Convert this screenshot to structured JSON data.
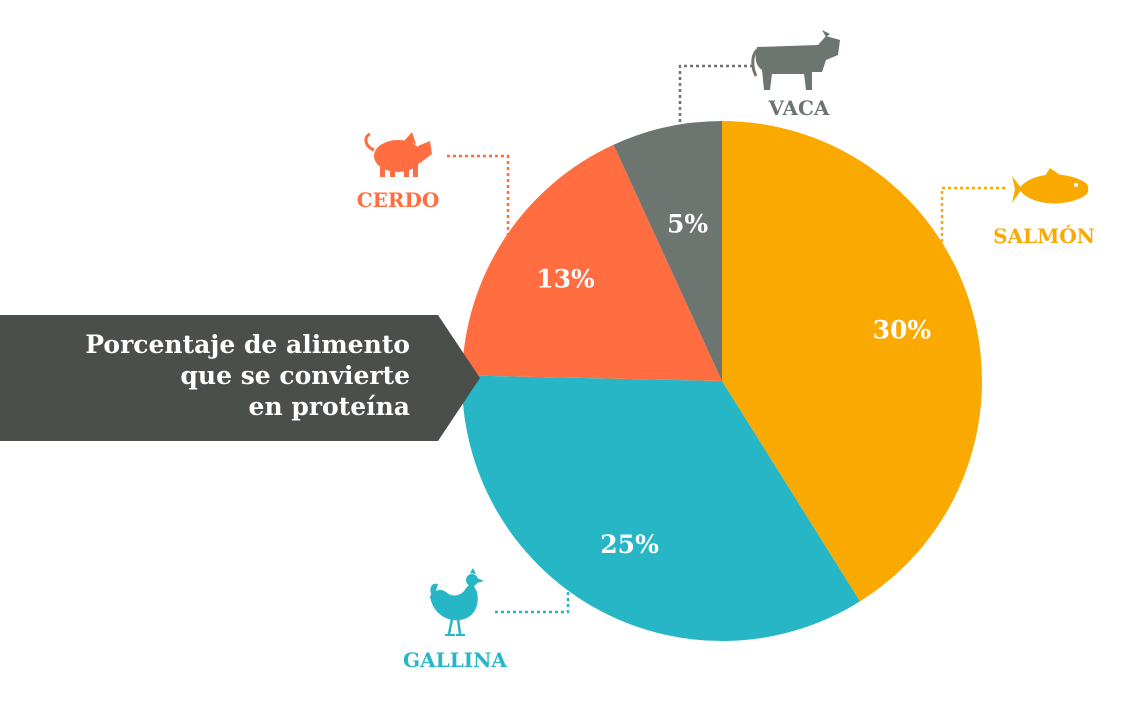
{
  "colors": {
    "salmon": "#F9A900",
    "chicken": "#26B6C6",
    "pork": "#FF6D40",
    "beef": "#6D7571",
    "banner": "#4A4F4C"
  },
  "banner": {
    "lines": [
      "Porcentaje de alimento",
      "que se convierte",
      "en proteína"
    ]
  },
  "chart_data": {
    "type": "pie",
    "slices": [
      {
        "label": "SALMÓN",
        "value": 30,
        "value_label": "30%",
        "color": "#F9A900",
        "icon": "fish-icon"
      },
      {
        "label": "GALLINA",
        "value": 25,
        "value_label": "25%",
        "color": "#26B6C6",
        "icon": "chicken-icon"
      },
      {
        "label": "CERDO",
        "value": 13,
        "value_label": "13%",
        "color": "#FF6D40",
        "icon": "pig-icon"
      },
      {
        "label": "VACA",
        "value": 5,
        "value_label": "5%",
        "color": "#6D7571",
        "icon": "cow-icon"
      }
    ],
    "start": "top",
    "direction": "clockwise"
  }
}
